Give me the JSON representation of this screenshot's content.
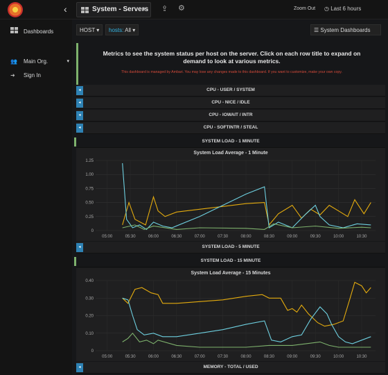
{
  "topbar": {
    "dashboard_title": "System - Servers",
    "zoom_out": "Zoom Out",
    "time_range": "Last 6 hours"
  },
  "sidebar": {
    "items": [
      {
        "label": "Dashboards",
        "icon": "grid-icon"
      },
      {
        "label": "Main Org.",
        "icon": "users-icon"
      },
      {
        "label": "Sign In",
        "icon": "sign-in-icon"
      }
    ]
  },
  "submenu": {
    "host_label": "HOST",
    "hosts_label": "hosts:",
    "hosts_value": "All",
    "system_dashboards": "System Dashboards"
  },
  "info_panel": {
    "heading": "Metrics to see the system status per host on the server. Click on each row title to expand on demand to look at various metrics.",
    "warning": "This dashboard is managed by Ambari. You may lose any changes made to this dashboard. If you want to customize, make your own copy."
  },
  "rows": [
    {
      "label": "CPU - USER / SYSTEM"
    },
    {
      "label": "CPU - NICE / IDLE"
    },
    {
      "label": "CPU - IOWAIT / INTR"
    },
    {
      "label": "CPU - SOFTINTR / STEAL"
    },
    {
      "label": "SYSTEM LOAD - 1 MINUTE"
    },
    {
      "label": "SYSTEM LOAD - 5 MINUTE"
    },
    {
      "label": "SYSTEM LOAD - 15 MINUTE"
    },
    {
      "label": "MEMORY - TOTAL / USED"
    }
  ],
  "colors": {
    "series_yellow": "#e5ac0e",
    "series_blue": "#6ed0e0",
    "series_green": "#7eb26d",
    "accent_blue": "#33b5e5",
    "toggle_blue": "#2e82b4",
    "warning_red": "#d44a3a"
  },
  "chart_data": [
    {
      "type": "line",
      "title": "System Load Average - 1 Minute",
      "x_ticks": [
        "05:00",
        "05:30",
        "06:00",
        "06:30",
        "07:00",
        "07:30",
        "08:00",
        "08:30",
        "09:00",
        "09:30",
        "10:00",
        "10:30"
      ],
      "y_ticks": [
        "0",
        "0.25",
        "0.50",
        "0.75",
        "1.00",
        "1.25"
      ],
      "ylim": [
        0,
        1.25
      ],
      "grid": true,
      "series": [
        {
          "color": "#e5ac0e",
          "points": [
            [
              5.33,
              0.1
            ],
            [
              5.47,
              0.5
            ],
            [
              5.6,
              0.2
            ],
            [
              5.83,
              0.1
            ],
            [
              6.0,
              0.6
            ],
            [
              6.1,
              0.35
            ],
            [
              6.25,
              0.25
            ],
            [
              6.5,
              0.33
            ],
            [
              7.0,
              0.38
            ],
            [
              7.5,
              0.43
            ],
            [
              8.0,
              0.48
            ],
            [
              8.4,
              0.5
            ],
            [
              8.5,
              0.1
            ],
            [
              8.7,
              0.3
            ],
            [
              9.0,
              0.45
            ],
            [
              9.2,
              0.22
            ],
            [
              9.4,
              0.38
            ],
            [
              9.6,
              0.28
            ],
            [
              9.8,
              0.45
            ],
            [
              10.0,
              0.35
            ],
            [
              10.2,
              0.25
            ],
            [
              10.35,
              0.55
            ],
            [
              10.55,
              0.3
            ],
            [
              10.7,
              0.5
            ]
          ]
        },
        {
          "color": "#6ed0e0",
          "points": [
            [
              5.33,
              1.2
            ],
            [
              5.42,
              0.2
            ],
            [
              5.55,
              0.05
            ],
            [
              5.7,
              0.1
            ],
            [
              5.85,
              0.02
            ],
            [
              6.0,
              0.15
            ],
            [
              6.2,
              0.08
            ],
            [
              6.4,
              0.05
            ],
            [
              7.0,
              0.25
            ],
            [
              7.5,
              0.45
            ],
            [
              8.0,
              0.65
            ],
            [
              8.4,
              0.78
            ],
            [
              8.5,
              0.05
            ],
            [
              8.7,
              0.15
            ],
            [
              9.0,
              0.05
            ],
            [
              9.3,
              0.3
            ],
            [
              9.5,
              0.45
            ],
            [
              9.6,
              0.25
            ],
            [
              9.8,
              0.1
            ],
            [
              10.1,
              0.05
            ],
            [
              10.4,
              0.12
            ],
            [
              10.7,
              0.1
            ]
          ]
        },
        {
          "color": "#7eb26d",
          "points": [
            [
              5.33,
              0.05
            ],
            [
              5.6,
              0.1
            ],
            [
              5.8,
              0.02
            ],
            [
              6.0,
              0.08
            ],
            [
              6.5,
              0.02
            ],
            [
              7.0,
              0.05
            ],
            [
              8.0,
              0.04
            ],
            [
              8.4,
              0.02
            ],
            [
              8.6,
              0.12
            ],
            [
              9.0,
              0.05
            ],
            [
              9.5,
              0.08
            ],
            [
              10.0,
              0.04
            ],
            [
              10.5,
              0.06
            ],
            [
              10.7,
              0.05
            ]
          ]
        }
      ]
    },
    {
      "type": "line",
      "title": "System Load Average - 15 Minutes",
      "x_ticks": [
        "05:00",
        "05:30",
        "06:00",
        "06:30",
        "07:00",
        "07:30",
        "08:00",
        "08:30",
        "09:00",
        "09:30",
        "10:00",
        "10:30"
      ],
      "y_ticks": [
        "0",
        "0.10",
        "0.20",
        "0.30",
        "0.40"
      ],
      "ylim": [
        0,
        0.4
      ],
      "grid": true,
      "series": [
        {
          "color": "#e5ac0e",
          "points": [
            [
              5.33,
              0.3
            ],
            [
              5.45,
              0.27
            ],
            [
              5.6,
              0.35
            ],
            [
              5.75,
              0.36
            ],
            [
              5.95,
              0.33
            ],
            [
              6.1,
              0.32
            ],
            [
              6.2,
              0.27
            ],
            [
              6.5,
              0.27
            ],
            [
              7.0,
              0.28
            ],
            [
              7.5,
              0.29
            ],
            [
              8.0,
              0.31
            ],
            [
              8.35,
              0.32
            ],
            [
              8.5,
              0.3
            ],
            [
              8.75,
              0.3
            ],
            [
              8.9,
              0.23
            ],
            [
              9.0,
              0.24
            ],
            [
              9.1,
              0.22
            ],
            [
              9.2,
              0.26
            ],
            [
              9.35,
              0.21
            ],
            [
              9.55,
              0.16
            ],
            [
              9.7,
              0.14
            ],
            [
              9.9,
              0.15
            ],
            [
              10.1,
              0.17
            ],
            [
              10.25,
              0.3
            ],
            [
              10.35,
              0.39
            ],
            [
              10.5,
              0.37
            ],
            [
              10.6,
              0.33
            ],
            [
              10.7,
              0.36
            ]
          ]
        },
        {
          "color": "#6ed0e0",
          "points": [
            [
              5.33,
              0.3
            ],
            [
              5.45,
              0.29
            ],
            [
              5.55,
              0.2
            ],
            [
              5.65,
              0.12
            ],
            [
              5.8,
              0.09
            ],
            [
              6.0,
              0.1
            ],
            [
              6.2,
              0.08
            ],
            [
              6.5,
              0.08
            ],
            [
              7.0,
              0.1
            ],
            [
              7.5,
              0.12
            ],
            [
              8.0,
              0.15
            ],
            [
              8.4,
              0.17
            ],
            [
              8.55,
              0.06
            ],
            [
              8.75,
              0.05
            ],
            [
              9.0,
              0.08
            ],
            [
              9.2,
              0.09
            ],
            [
              9.4,
              0.18
            ],
            [
              9.6,
              0.25
            ],
            [
              9.75,
              0.21
            ],
            [
              9.85,
              0.15
            ],
            [
              10.0,
              0.08
            ],
            [
              10.15,
              0.05
            ],
            [
              10.3,
              0.04
            ],
            [
              10.5,
              0.06
            ],
            [
              10.7,
              0.08
            ]
          ]
        },
        {
          "color": "#7eb26d",
          "points": [
            [
              5.33,
              0.05
            ],
            [
              5.45,
              0.07
            ],
            [
              5.55,
              0.1
            ],
            [
              5.7,
              0.05
            ],
            [
              5.85,
              0.06
            ],
            [
              6.0,
              0.04
            ],
            [
              6.1,
              0.06
            ],
            [
              6.5,
              0.03
            ],
            [
              7.0,
              0.02
            ],
            [
              8.0,
              0.02
            ],
            [
              8.5,
              0.03
            ],
            [
              9.0,
              0.03
            ],
            [
              9.3,
              0.04
            ],
            [
              9.6,
              0.05
            ],
            [
              9.8,
              0.03
            ],
            [
              10.0,
              0.02
            ],
            [
              10.5,
              0.02
            ],
            [
              10.7,
              0.02
            ]
          ]
        }
      ]
    }
  ]
}
